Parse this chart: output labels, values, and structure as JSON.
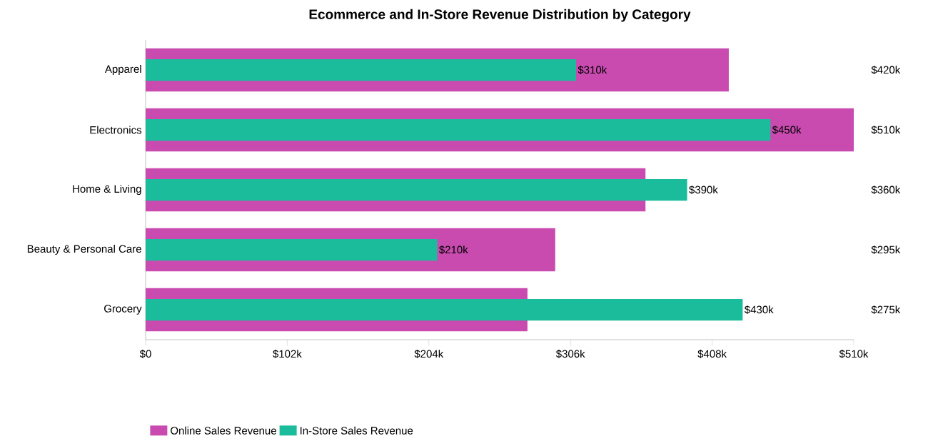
{
  "chart_data": {
    "type": "bar",
    "orientation": "horizontal",
    "title": "Ecommerce and In-Store Revenue Distribution by Category",
    "categories": [
      "Apparel",
      "Electronics",
      "Home & Living",
      "Beauty & Personal Care",
      "Grocery"
    ],
    "series": [
      {
        "name": "Online Sales Revenue",
        "color": "#c94bb0",
        "values": [
          420,
          510,
          360,
          295,
          275
        ],
        "value_labels": [
          "$420k",
          "$510k",
          "$360k",
          "$295k",
          "$275k"
        ]
      },
      {
        "name": "In-Store Sales Revenue",
        "color": "#1abc9c",
        "values": [
          310,
          450,
          390,
          210,
          430
        ],
        "value_labels": [
          "$310k",
          "$450k",
          "$390k",
          "$210k",
          "$430k"
        ]
      }
    ],
    "xlim": [
      0,
      510
    ],
    "xticks": [
      {
        "value": 0,
        "label": "$0"
      },
      {
        "value": 102,
        "label": "$102k"
      },
      {
        "value": 204,
        "label": "$204k"
      },
      {
        "value": 306,
        "label": "$306k"
      },
      {
        "value": 408,
        "label": "$408k"
      },
      {
        "value": 510,
        "label": "$510k"
      }
    ],
    "legend": "bottom left"
  }
}
